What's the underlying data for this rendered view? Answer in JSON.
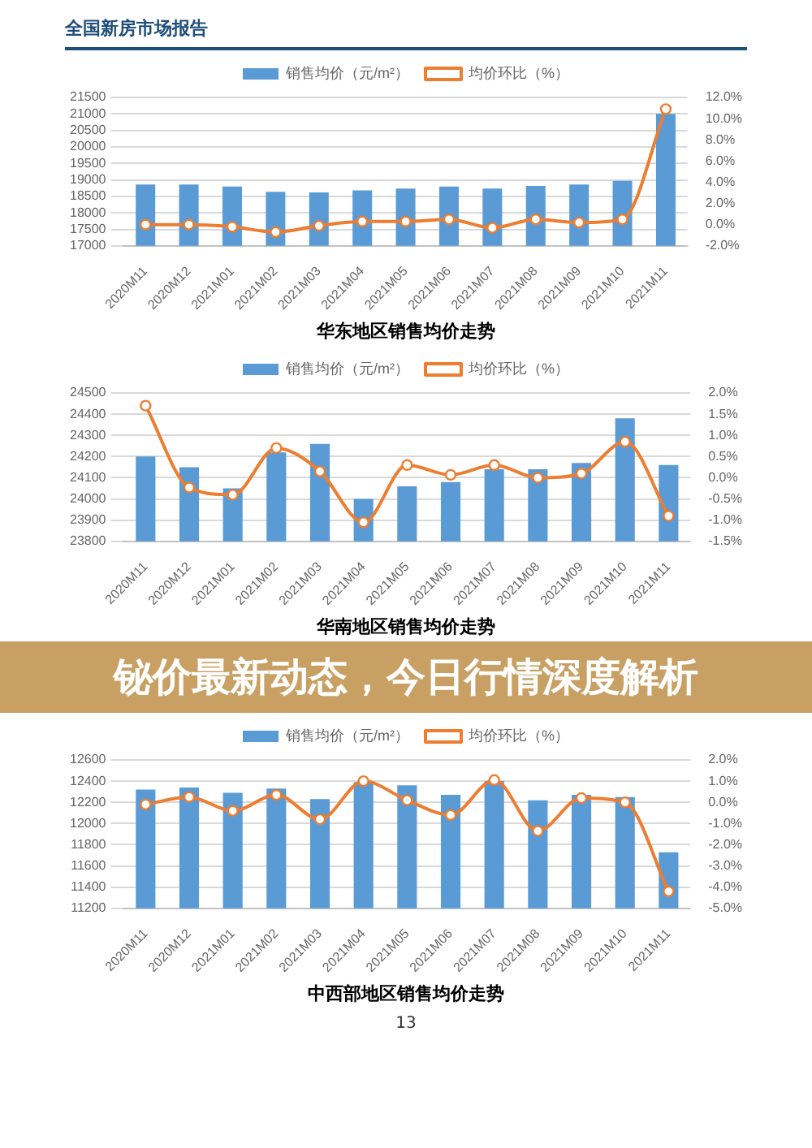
{
  "chart_data": [
    {
      "type": "bar",
      "title": "华东地区销售均价走势",
      "annotations": [
        "全国新房市场报告"
      ],
      "categories": [
        "2020M11",
        "2020M12",
        "2021M01",
        "2021M02",
        "2021M03",
        "2021M04",
        "2021M05",
        "2021M06",
        "2021M07",
        "2021M08",
        "2021M09",
        "2021M10",
        "2021M11"
      ],
      "series": [
        {
          "name": "销售均价（元/m²）",
          "color": "#5b9bd5",
          "values": [
            18860,
            18860,
            18800,
            18640,
            18620,
            18680,
            18740,
            18800,
            18740,
            18820,
            18860,
            18970,
            21000
          ]
        },
        {
          "name": "均价环比（%）",
          "type": "line",
          "axis": "y2",
          "color": "#ed7d31",
          "values": [
            0.0,
            0.0,
            -0.2,
            -0.7,
            -0.1,
            0.3,
            0.3,
            0.5,
            -0.3,
            0.5,
            0.2,
            0.5,
            10.9
          ]
        }
      ],
      "ylim": [
        17000,
        21500
      ],
      "yticks": [
        17000,
        17500,
        18000,
        18500,
        19000,
        19500,
        20000,
        20500,
        21000,
        21500
      ],
      "y2lim": [
        -2,
        12
      ],
      "y2ticks": [
        {
          "value": -2,
          "label": "-2.0%"
        },
        {
          "value": 0,
          "label": "0.0%"
        },
        {
          "value": 2,
          "label": "2.0%"
        },
        {
          "value": 4,
          "label": "4.0%"
        },
        {
          "value": 6,
          "label": "6.0%"
        },
        {
          "value": 8,
          "label": "8.0%"
        },
        {
          "value": 10,
          "label": "10.0%"
        },
        {
          "value": 12,
          "label": "12.0%"
        }
      ],
      "grid": "y",
      "legend": "top",
      "marker": "circle",
      "line_style": "solid"
    },
    {
      "type": "bar",
      "title": "华南地区销售均价走势",
      "annotations": [
        "铋价最新动态，今日行情深度解析"
      ],
      "categories": [
        "2020M11",
        "2020M12",
        "2021M01",
        "2021M02",
        "2021M03",
        "2021M04",
        "2021M05",
        "2021M06",
        "2021M07",
        "2021M08",
        "2021M09",
        "2021M10",
        "2021M11"
      ],
      "series": [
        {
          "name": "销售均价（元/m²）",
          "color": "#5b9bd5",
          "values": [
            24200,
            24150,
            24050,
            24220,
            24260,
            24000,
            24060,
            24080,
            24140,
            24140,
            24170,
            24380,
            24160
          ]
        },
        {
          "name": "均价环比（%）",
          "type": "line",
          "axis": "y2",
          "color": "#ed7d31",
          "values": [
            1.7,
            -0.23,
            -0.4,
            0.7,
            0.15,
            -1.05,
            0.3,
            0.07,
            0.3,
            0.0,
            0.1,
            0.85,
            -0.9
          ]
        }
      ],
      "ylim": [
        23800,
        24500
      ],
      "yticks": [
        23800,
        23900,
        24000,
        24100,
        24200,
        24300,
        24400,
        24500
      ],
      "y2lim": [
        -1.5,
        2
      ],
      "y2ticks": [
        {
          "value": -1.5,
          "label": "-1.5%"
        },
        {
          "value": -1,
          "label": "-1.0%"
        },
        {
          "value": -0.5,
          "label": "-0.5%"
        },
        {
          "value": 0,
          "label": "0.0%"
        },
        {
          "value": 0.5,
          "label": "0.5%"
        },
        {
          "value": 1,
          "label": "1.0%"
        },
        {
          "value": 1.5,
          "label": "1.5%"
        },
        {
          "value": 2,
          "label": "2.0%"
        }
      ],
      "grid": "y",
      "legend": "top",
      "marker": "circle",
      "line_style": "solid"
    },
    {
      "type": "bar",
      "title": "中西部地区销售均价走势",
      "annotations": [
        "13"
      ],
      "categories": [
        "2020M11",
        "2020M12",
        "2021M01",
        "2021M02",
        "2021M03",
        "2021M04",
        "2021M05",
        "2021M06",
        "2021M07",
        "2021M08",
        "2021M09",
        "2021M10",
        "2021M11"
      ],
      "series": [
        {
          "name": "销售均价（元/m²）",
          "color": "#5b9bd5",
          "values": [
            12320,
            12340,
            12290,
            12330,
            12230,
            12390,
            12360,
            12270,
            12400,
            12220,
            12270,
            12250,
            11730
          ]
        },
        {
          "name": "均价环比（%）",
          "type": "line",
          "axis": "y2",
          "color": "#ed7d31",
          "values": [
            -0.1,
            0.25,
            -0.4,
            0.35,
            -0.8,
            1.0,
            0.1,
            -0.6,
            1.05,
            -1.35,
            0.2,
            0.0,
            -4.2
          ]
        }
      ],
      "ylim": [
        11200,
        12600
      ],
      "yticks": [
        11200,
        11400,
        11600,
        11800,
        12000,
        12200,
        12400,
        12600
      ],
      "y2lim": [
        -5,
        2
      ],
      "y2ticks": [
        {
          "value": -5,
          "label": "-5.0%"
        },
        {
          "value": -4,
          "label": "-4.0%"
        },
        {
          "value": -3,
          "label": "-3.0%"
        },
        {
          "value": -2,
          "label": "-2.0%"
        },
        {
          "value": -1,
          "label": "-1.0%"
        },
        {
          "value": 0,
          "label": "0.0%"
        },
        {
          "value": 1,
          "label": "1.0%"
        },
        {
          "value": 2,
          "label": "2.0%"
        }
      ],
      "grid": "y",
      "legend": "top",
      "marker": "circle",
      "line_style": "solid"
    }
  ]
}
